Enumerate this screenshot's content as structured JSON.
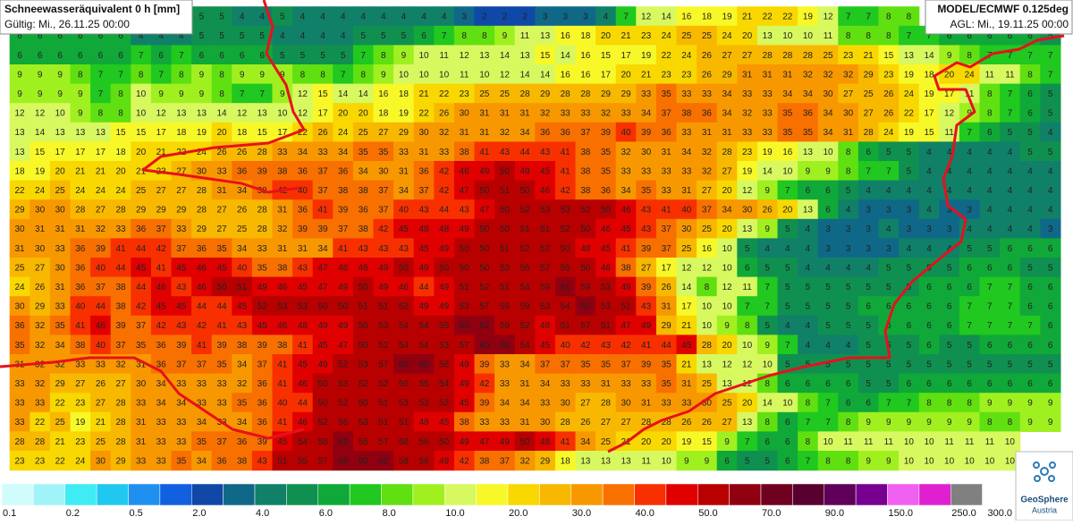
{
  "header": {
    "title": "Schneewasseräquivalent 0 h [mm]",
    "valid": "Gültig: Mi., 26.11.25 00:00"
  },
  "model": {
    "title": "MODEL/ECMWF 0.125deg",
    "run": "AGL: Mi., 19.11.25 00:00"
  },
  "grid": {
    "rows": [
      [
        null,
        null,
        null,
        null,
        null,
        null,
        null,
        null,
        null,
        5,
        5,
        4,
        4,
        5,
        4,
        4,
        4,
        4,
        4,
        4,
        4,
        4,
        3,
        2,
        2,
        2,
        3,
        3,
        3,
        4,
        7,
        12,
        14,
        16,
        18,
        19,
        21,
        22,
        22,
        19,
        12,
        7,
        7,
        8,
        8,
        null,
        null,
        null,
        null,
        null,
        null,
        null
      ],
      [
        6,
        6,
        6,
        6,
        6,
        6,
        4,
        4,
        4,
        5,
        5,
        5,
        5,
        4,
        4,
        4,
        4,
        5,
        5,
        5,
        6,
        7,
        8,
        8,
        9,
        11,
        13,
        16,
        18,
        20,
        21,
        23,
        24,
        25,
        25,
        24,
        20,
        13,
        10,
        10,
        11,
        8,
        8,
        8,
        7,
        7,
        6,
        6,
        6,
        6,
        6,
        5
      ],
      [
        6,
        6,
        6,
        6,
        6,
        6,
        7,
        6,
        7,
        6,
        6,
        6,
        6,
        5,
        5,
        5,
        5,
        7,
        8,
        9,
        10,
        11,
        12,
        13,
        14,
        13,
        15,
        14,
        16,
        15,
        17,
        19,
        22,
        24,
        26,
        27,
        27,
        28,
        28,
        28,
        25,
        23,
        21,
        15,
        13,
        14,
        9,
        8,
        7,
        7,
        7,
        7
      ],
      [
        9,
        9,
        9,
        8,
        7,
        7,
        8,
        7,
        8,
        9,
        8,
        9,
        9,
        9,
        8,
        8,
        7,
        8,
        9,
        10,
        10,
        10,
        11,
        10,
        12,
        14,
        14,
        16,
        16,
        17,
        20,
        21,
        23,
        23,
        26,
        29,
        31,
        31,
        31,
        32,
        32,
        32,
        29,
        23,
        19,
        18,
        20,
        24,
        11,
        11,
        8,
        7
      ],
      [
        9,
        9,
        9,
        9,
        7,
        8,
        10,
        9,
        9,
        9,
        8,
        7,
        7,
        9,
        12,
        15,
        14,
        14,
        16,
        18,
        21,
        22,
        23,
        25,
        25,
        28,
        29,
        28,
        28,
        29,
        29,
        33,
        35,
        33,
        33,
        34,
        33,
        33,
        34,
        34,
        30,
        27,
        25,
        26,
        24,
        19,
        17,
        11,
        8,
        7,
        6,
        5
      ],
      [
        12,
        12,
        10,
        9,
        8,
        8,
        10,
        12,
        13,
        13,
        14,
        12,
        13,
        10,
        12,
        17,
        20,
        20,
        18,
        19,
        22,
        26,
        30,
        31,
        31,
        31,
        32,
        33,
        33,
        32,
        33,
        34,
        37,
        38,
        36,
        34,
        32,
        33,
        35,
        36,
        34,
        30,
        27,
        26,
        22,
        17,
        12,
        9,
        8,
        7,
        6,
        5
      ],
      [
        13,
        14,
        13,
        13,
        13,
        15,
        15,
        17,
        18,
        19,
        20,
        18,
        15,
        17,
        22,
        26,
        24,
        25,
        27,
        29,
        30,
        32,
        31,
        31,
        32,
        34,
        36,
        36,
        37,
        39,
        40,
        39,
        36,
        33,
        31,
        31,
        33,
        33,
        35,
        35,
        34,
        31,
        28,
        24,
        19,
        15,
        11,
        7,
        6,
        5,
        5,
        4
      ],
      [
        13,
        15,
        17,
        17,
        17,
        18,
        20,
        21,
        22,
        24,
        26,
        26,
        28,
        33,
        34,
        33,
        34,
        35,
        35,
        33,
        31,
        33,
        38,
        41,
        43,
        44,
        43,
        41,
        38,
        35,
        32,
        30,
        31,
        34,
        32,
        28,
        23,
        19,
        16,
        13,
        10,
        8,
        6,
        5,
        5,
        4,
        4,
        4,
        4,
        4,
        5,
        5
      ],
      [
        18,
        19,
        20,
        21,
        21,
        20,
        21,
        23,
        27,
        30,
        33,
        36,
        39,
        38,
        36,
        37,
        36,
        34,
        30,
        31,
        36,
        42,
        46,
        49,
        50,
        49,
        45,
        41,
        38,
        35,
        33,
        33,
        33,
        33,
        32,
        27,
        19,
        14,
        10,
        9,
        9,
        8,
        7,
        7,
        5,
        4,
        4,
        4,
        4,
        4,
        4,
        4
      ],
      [
        22,
        24,
        25,
        24,
        24,
        24,
        25,
        27,
        27,
        28,
        31,
        34,
        38,
        42,
        40,
        37,
        38,
        38,
        37,
        34,
        37,
        42,
        47,
        50,
        51,
        50,
        46,
        42,
        38,
        36,
        34,
        35,
        33,
        31,
        27,
        20,
        12,
        9,
        7,
        6,
        6,
        5,
        4,
        4,
        4,
        4,
        4,
        4,
        4,
        4,
        4,
        4
      ],
      [
        29,
        30,
        30,
        28,
        27,
        28,
        29,
        29,
        29,
        28,
        27,
        26,
        28,
        31,
        36,
        41,
        39,
        36,
        37,
        40,
        43,
        44,
        43,
        47,
        50,
        52,
        53,
        53,
        52,
        50,
        46,
        43,
        41,
        40,
        37,
        34,
        30,
        26,
        20,
        13,
        6,
        4,
        3,
        3,
        3,
        4,
        3,
        3,
        4,
        4,
        4,
        4
      ],
      [
        30,
        31,
        31,
        31,
        32,
        33,
        36,
        37,
        33,
        29,
        27,
        25,
        28,
        32,
        39,
        39,
        37,
        38,
        42,
        45,
        48,
        48,
        49,
        50,
        50,
        51,
        51,
        52,
        50,
        46,
        45,
        43,
        37,
        30,
        25,
        20,
        13,
        9,
        5,
        4,
        3,
        3,
        3,
        4,
        3,
        3,
        3,
        4,
        4,
        4,
        4,
        3
      ],
      [
        31,
        30,
        33,
        36,
        39,
        41,
        44,
        42,
        37,
        36,
        35,
        34,
        33,
        31,
        31,
        34,
        41,
        43,
        43,
        43,
        45,
        49,
        50,
        50,
        51,
        52,
        52,
        50,
        48,
        45,
        41,
        39,
        37,
        25,
        16,
        10,
        5,
        4,
        4,
        4,
        3,
        3,
        3,
        3,
        4,
        4,
        4,
        5,
        5,
        6,
        6,
        6
      ],
      [
        25,
        27,
        30,
        36,
        40,
        44,
        45,
        41,
        45,
        46,
        45,
        40,
        35,
        38,
        43,
        47,
        46,
        46,
        49,
        50,
        49,
        50,
        50,
        50,
        53,
        56,
        57,
        55,
        50,
        46,
        38,
        27,
        17,
        12,
        12,
        10,
        6,
        5,
        5,
        4,
        4,
        4,
        4,
        5,
        5,
        5,
        5,
        6,
        6,
        6,
        5,
        5
      ],
      [
        24,
        26,
        31,
        36,
        37,
        38,
        44,
        46,
        43,
        46,
        50,
        51,
        49,
        46,
        45,
        47,
        49,
        50,
        49,
        46,
        44,
        49,
        51,
        52,
        51,
        54,
        59,
        61,
        59,
        53,
        49,
        39,
        26,
        14,
        8,
        12,
        11,
        7,
        5,
        5,
        5,
        5,
        5,
        5,
        5,
        6,
        6,
        6,
        7,
        7,
        6,
        6
      ],
      [
        30,
        29,
        33,
        40,
        44,
        38,
        42,
        45,
        45,
        44,
        44,
        45,
        52,
        53,
        53,
        50,
        50,
        51,
        51,
        52,
        49,
        49,
        53,
        57,
        59,
        59,
        53,
        54,
        60,
        53,
        51,
        43,
        31,
        17,
        10,
        10,
        7,
        7,
        5,
        5,
        5,
        5,
        6,
        6,
        6,
        6,
        6,
        7,
        7,
        7,
        6,
        6
      ],
      [
        36,
        32,
        35,
        41,
        46,
        39,
        37,
        42,
        43,
        42,
        41,
        43,
        45,
        46,
        48,
        49,
        49,
        50,
        53,
        54,
        54,
        55,
        60,
        62,
        59,
        52,
        48,
        51,
        57,
        51,
        47,
        49,
        29,
        21,
        10,
        9,
        8,
        5,
        4,
        4,
        5,
        5,
        5,
        6,
        6,
        6,
        6,
        7,
        7,
        7,
        7,
        6
      ],
      [
        35,
        32,
        34,
        38,
        40,
        37,
        35,
        36,
        39,
        41,
        39,
        38,
        39,
        38,
        41,
        45,
        47,
        50,
        52,
        54,
        54,
        53,
        57,
        60,
        60,
        54,
        45,
        40,
        42,
        43,
        42,
        41,
        44,
        45,
        28,
        20,
        10,
        9,
        7,
        4,
        4,
        4,
        5,
        5,
        5,
        6,
        5,
        5,
        6,
        6,
        6,
        6
      ],
      [
        31,
        32,
        32,
        33,
        33,
        32,
        31,
        36,
        37,
        37,
        35,
        34,
        37,
        41,
        45,
        49,
        52,
        53,
        57,
        60,
        60,
        56,
        49,
        39,
        33,
        34,
        37,
        37,
        35,
        35,
        37,
        39,
        35,
        21,
        13,
        12,
        12,
        10,
        5,
        5,
        5,
        5,
        5,
        5,
        5,
        5,
        5,
        5,
        5,
        5,
        5,
        5
      ],
      [
        33,
        32,
        29,
        27,
        26,
        27,
        30,
        34,
        33,
        33,
        33,
        32,
        36,
        41,
        46,
        50,
        53,
        52,
        52,
        50,
        55,
        54,
        49,
        42,
        33,
        31,
        34,
        33,
        33,
        31,
        33,
        33,
        35,
        31,
        25,
        13,
        12,
        8,
        6,
        6,
        6,
        6,
        5,
        5,
        6,
        6,
        6,
        6,
        6,
        6,
        6,
        6
      ],
      [
        33,
        33,
        22,
        23,
        27,
        28,
        33,
        34,
        34,
        33,
        33,
        35,
        36,
        40,
        44,
        50,
        52,
        50,
        51,
        53,
        53,
        52,
        45,
        39,
        34,
        34,
        33,
        30,
        27,
        28,
        30,
        31,
        33,
        33,
        30,
        25,
        20,
        14,
        10,
        8,
        7,
        6,
        6,
        7,
        7,
        8,
        8,
        8,
        9,
        9,
        9,
        9
      ],
      [
        33,
        22,
        25,
        19,
        21,
        28,
        31,
        33,
        33,
        34,
        33,
        34,
        36,
        41,
        46,
        52,
        56,
        53,
        51,
        51,
        48,
        45,
        38,
        33,
        33,
        31,
        30,
        28,
        26,
        27,
        27,
        28,
        28,
        26,
        26,
        27,
        13,
        8,
        6,
        7,
        7,
        8,
        9,
        9,
        9,
        9,
        9,
        9,
        8,
        8,
        9,
        9
      ],
      [
        28,
        28,
        21,
        23,
        25,
        28,
        31,
        33,
        33,
        35,
        37,
        36,
        39,
        45,
        54,
        58,
        62,
        55,
        57,
        58,
        56,
        50,
        49,
        47,
        49,
        50,
        48,
        41,
        34,
        25,
        21,
        20,
        20,
        19,
        15,
        9,
        7,
        6,
        6,
        8,
        10,
        11,
        11,
        11,
        10,
        10,
        11,
        11,
        11,
        10,
        null,
        null
      ],
      [
        23,
        23,
        22,
        24,
        30,
        29,
        33,
        33,
        35,
        34,
        36,
        38,
        43,
        51,
        55,
        57,
        68,
        60,
        62,
        58,
        56,
        49,
        42,
        38,
        37,
        32,
        29,
        18,
        13,
        13,
        13,
        11,
        10,
        9,
        9,
        6,
        5,
        5,
        6,
        7,
        8,
        8,
        9,
        9,
        10,
        10,
        10,
        10,
        10,
        10,
        null,
        null
      ]
    ]
  },
  "legend": {
    "colors": [
      "#d0fcfc",
      "#a0f4f8",
      "#40ecf4",
      "#20c8f0",
      "#2090f0",
      "#1060e0",
      "#1048a8",
      "#106888",
      "#108068",
      "#109050",
      "#10a838",
      "#20c820",
      "#60e010",
      "#a0f020",
      "#d8f860",
      "#f8f828",
      "#f8d800",
      "#f8b800",
      "#f89800",
      "#f87000",
      "#f83000",
      "#e00000",
      "#b80000",
      "#900010",
      "#700020",
      "#580030",
      "#600058",
      "#780090",
      "#f060f0",
      "#e020d0",
      "#808080",
      "#ffffff"
    ],
    "ticks": [
      0.1,
      0.2,
      0.5,
      {
        "value": 2,
        "label": "2.0"
      },
      {
        "value": 4,
        "label": "4.0"
      },
      {
        "value": 6,
        "label": "6.0"
      },
      {
        "value": 8,
        "label": "8.0"
      },
      {
        "value": 10,
        "label": "10.0"
      },
      {
        "value": 20,
        "label": "20.0"
      },
      {
        "value": 30,
        "label": "30.0"
      },
      {
        "value": 40,
        "label": "40.0"
      },
      {
        "value": 50,
        "label": "50.0"
      },
      {
        "value": 70,
        "label": "70.0"
      },
      {
        "value": 90,
        "label": "90.0"
      },
      {
        "value": 150,
        "label": "150.0"
      },
      {
        "value": 250,
        "label": "250.0"
      },
      {
        "value": 300,
        "label": "300.0"
      }
    ]
  },
  "logo": {
    "name": "GeoSphere",
    "subtitle": "Austria"
  }
}
